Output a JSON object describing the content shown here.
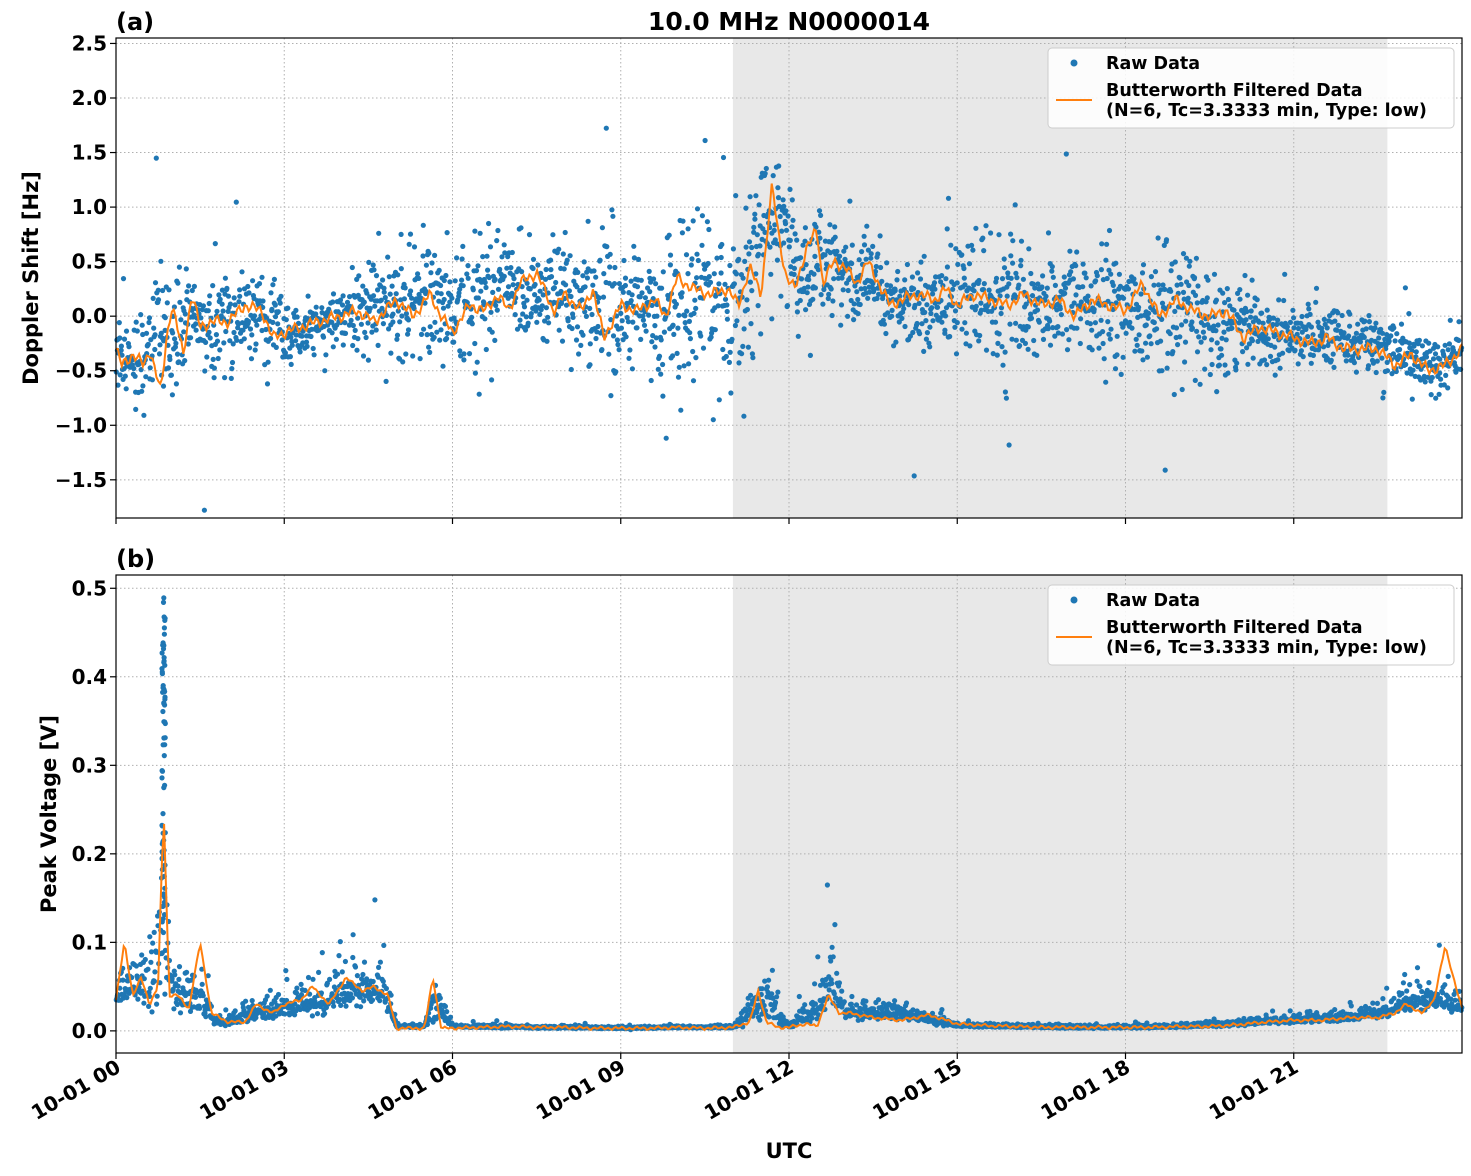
{
  "chart_data": [
    {
      "type": "scatter",
      "panel_label": "(a)",
      "title": "10.0 MHz N0000014",
      "xlabel": "",
      "ylabel": "Doppler Shift [Hz]",
      "xlim": [
        0,
        24
      ],
      "ylim": [
        -1.85,
        2.55
      ],
      "yticks": [
        -1.5,
        -1.0,
        -0.5,
        0.0,
        0.5,
        1.0,
        1.5,
        2.0,
        2.5
      ],
      "ytick_labels": [
        "−1.5",
        "−1.0",
        "−0.5",
        "0.0",
        "0.5",
        "1.0",
        "1.5",
        "2.0",
        "2.5"
      ],
      "grid": true,
      "legend_position": "top-right",
      "shaded_interval_hours": [
        11.0,
        22.67
      ],
      "series": [
        {
          "name": "Raw Data",
          "kind": "scatter",
          "color": "#1f77b4",
          "x": [
            0,
            0.5,
            0.75,
            1.0,
            1.25,
            1.5,
            2.0,
            2.5,
            3.0,
            3.5,
            4.0,
            4.5,
            5.0,
            5.5,
            6.0,
            6.5,
            7.0,
            7.5,
            8.0,
            8.5,
            9.0,
            9.5,
            10.0,
            10.5,
            11.0,
            11.5,
            11.8,
            12.2,
            12.6,
            13.0,
            13.5,
            14.0,
            14.5,
            15.0,
            15.5,
            16.0,
            16.5,
            17.0,
            17.5,
            18.0,
            18.5,
            19.0,
            19.5,
            20.0,
            20.5,
            21.0,
            21.5,
            22.0,
            22.5,
            23.0,
            23.5,
            24.0
          ],
          "center": [
            -0.3,
            -0.4,
            0.0,
            -0.35,
            0.0,
            -0.1,
            -0.05,
            0.05,
            -0.2,
            -0.1,
            0.0,
            0.05,
            0.1,
            0.15,
            0.05,
            0.2,
            0.25,
            0.15,
            0.2,
            0.1,
            0.05,
            0.0,
            0.1,
            0.15,
            0.15,
            0.7,
            0.95,
            0.35,
            0.5,
            0.3,
            0.25,
            0.15,
            0.1,
            0.2,
            0.15,
            0.1,
            0.1,
            0.15,
            0.05,
            0.05,
            0.0,
            0.05,
            0.0,
            -0.1,
            -0.1,
            -0.15,
            -0.2,
            -0.2,
            -0.25,
            -0.4,
            -0.45,
            -0.35
          ],
          "spread": [
            0.45,
            0.5,
            0.55,
            0.5,
            0.45,
            0.35,
            0.5,
            0.4,
            0.35,
            0.2,
            0.25,
            0.55,
            0.55,
            0.6,
            0.55,
            0.6,
            0.6,
            0.5,
            0.55,
            0.8,
            0.75,
            0.6,
            1.0,
            1.0,
            0.8,
            0.8,
            0.7,
            0.55,
            0.55,
            0.5,
            0.45,
            0.45,
            0.5,
            0.6,
            0.55,
            0.55,
            0.55,
            0.6,
            0.55,
            0.55,
            0.6,
            0.6,
            0.55,
            0.45,
            0.35,
            0.3,
            0.3,
            0.3,
            0.3,
            0.3,
            0.3,
            0.35
          ]
        },
        {
          "name": "Butterworth Filtered Data\n(N=6, Tc=3.3333 min, Type: low)",
          "legend_lines": [
            "Butterworth Filtered Data",
            "(N=6, Tc=3.3333 min, Type: low)"
          ],
          "kind": "line",
          "color": "#ff7f0e",
          "x": [
            0,
            0.1,
            0.3,
            0.5,
            0.6,
            0.8,
            0.9,
            1.0,
            1.2,
            1.35,
            1.5,
            1.7,
            2.0,
            2.3,
            2.6,
            2.8,
            3.0,
            3.3,
            3.6,
            4.0,
            4.3,
            4.6,
            5.0,
            5.3,
            5.6,
            5.8,
            6.0,
            6.3,
            6.6,
            6.8,
            7.0,
            7.2,
            7.5,
            7.8,
            8.0,
            8.3,
            8.5,
            8.7,
            9.0,
            9.3,
            9.6,
            9.8,
            10.0,
            10.3,
            10.6,
            10.9,
            11.1,
            11.3,
            11.5,
            11.7,
            11.8,
            11.95,
            12.1,
            12.3,
            12.5,
            12.6,
            12.8,
            13.0,
            13.2,
            13.4,
            13.6,
            13.8,
            14.0,
            14.3,
            14.6,
            14.8,
            15.0,
            15.3,
            15.6,
            15.9,
            16.2,
            16.5,
            16.8,
            17.1,
            17.4,
            17.7,
            18.0,
            18.3,
            18.6,
            18.9,
            19.2,
            19.5,
            19.8,
            20.1,
            20.4,
            20.7,
            21.0,
            21.3,
            21.6,
            21.9,
            22.2,
            22.5,
            22.8,
            23.1,
            23.4,
            23.7,
            24.0
          ],
          "y": [
            -0.3,
            -0.45,
            -0.35,
            -0.45,
            -0.3,
            -0.7,
            -0.2,
            0.1,
            -0.35,
            0.2,
            -0.1,
            -0.05,
            -0.05,
            0.1,
            0.05,
            -0.2,
            -0.15,
            -0.1,
            -0.05,
            0.0,
            0.05,
            -0.05,
            0.15,
            0.0,
            0.2,
            0.0,
            -0.15,
            0.1,
            0.05,
            0.2,
            0.05,
            0.3,
            0.4,
            0.05,
            0.2,
            0.05,
            0.25,
            -0.2,
            0.1,
            0.05,
            0.15,
            0.0,
            0.35,
            0.25,
            0.2,
            0.25,
            0.1,
            0.45,
            0.2,
            1.2,
            0.8,
            0.35,
            0.25,
            0.6,
            0.8,
            0.3,
            0.5,
            0.45,
            0.3,
            0.5,
            0.3,
            0.1,
            0.15,
            0.2,
            0.15,
            0.25,
            0.1,
            0.2,
            0.15,
            0.1,
            0.2,
            0.1,
            0.15,
            0.0,
            0.15,
            0.1,
            0.05,
            0.3,
            0.0,
            0.15,
            0.05,
            0.0,
            0.05,
            -0.2,
            -0.1,
            -0.15,
            -0.2,
            -0.25,
            -0.2,
            -0.3,
            -0.3,
            -0.3,
            -0.45,
            -0.35,
            -0.5,
            -0.45,
            -0.3
          ]
        }
      ]
    },
    {
      "type": "scatter",
      "panel_label": "(b)",
      "title": "",
      "xlabel": "UTC",
      "ylabel": "Peak Voltage [V]",
      "xlim": [
        0,
        24
      ],
      "ylim": [
        -0.025,
        0.515
      ],
      "yticks": [
        0.0,
        0.1,
        0.2,
        0.3,
        0.4,
        0.5
      ],
      "ytick_labels": [
        "0.0",
        "0.1",
        "0.2",
        "0.3",
        "0.4",
        "0.5"
      ],
      "xticks": [
        0,
        3,
        6,
        9,
        12,
        15,
        18,
        21
      ],
      "xtick_labels": [
        "10-01 00",
        "10-01 03",
        "10-01 06",
        "10-01 09",
        "10-01 12",
        "10-01 15",
        "10-01 18",
        "10-01 21"
      ],
      "grid": true,
      "legend_position": "top-right",
      "shaded_interval_hours": [
        11.0,
        22.67
      ],
      "series": [
        {
          "name": "Raw Data",
          "kind": "scatter",
          "color": "#1f77b4",
          "x": [
            0,
            0.3,
            0.6,
            0.85,
            1.0,
            1.5,
            1.8,
            2.0,
            2.5,
            3.0,
            3.5,
            4.0,
            4.5,
            4.8,
            5.0,
            5.5,
            5.7,
            6.0,
            7.0,
            8.0,
            9.0,
            10.0,
            11.0,
            11.5,
            12.0,
            12.5,
            12.8,
            13.0,
            14.0,
            14.5,
            15.0,
            16.0,
            17.0,
            18.0,
            19.0,
            20.0,
            21.0,
            22.0,
            22.5,
            23.0,
            23.5,
            24.0
          ],
          "center": [
            0.04,
            0.05,
            0.04,
            0.12,
            0.04,
            0.03,
            0.01,
            0.01,
            0.02,
            0.025,
            0.03,
            0.04,
            0.045,
            0.04,
            0.005,
            0.005,
            0.03,
            0.005,
            0.004,
            0.004,
            0.003,
            0.004,
            0.004,
            0.03,
            0.005,
            0.02,
            0.05,
            0.02,
            0.02,
            0.012,
            0.006,
            0.005,
            0.004,
            0.004,
            0.005,
            0.008,
            0.012,
            0.015,
            0.02,
            0.03,
            0.035,
            0.025
          ],
          "spread": [
            0.03,
            0.04,
            0.05,
            0.2,
            0.04,
            0.04,
            0.01,
            0.01,
            0.02,
            0.025,
            0.03,
            0.035,
            0.04,
            0.035,
            0.003,
            0.003,
            0.04,
            0.003,
            0.003,
            0.003,
            0.002,
            0.002,
            0.002,
            0.04,
            0.004,
            0.03,
            0.06,
            0.02,
            0.015,
            0.01,
            0.004,
            0.003,
            0.003,
            0.003,
            0.004,
            0.006,
            0.008,
            0.01,
            0.012,
            0.02,
            0.025,
            0.015
          ]
        },
        {
          "name": "Butterworth Filtered Data\n(N=6, Tc=3.3333 min, Type: low)",
          "legend_lines": [
            "Butterworth Filtered Data",
            "(N=6, Tc=3.3333 min, Type: low)"
          ],
          "kind": "line",
          "color": "#ff7f0e",
          "x": [
            0,
            0.15,
            0.3,
            0.45,
            0.6,
            0.75,
            0.85,
            0.95,
            1.1,
            1.3,
            1.5,
            1.7,
            2.0,
            2.3,
            2.5,
            2.8,
            3.0,
            3.3,
            3.5,
            3.8,
            4.1,
            4.4,
            4.6,
            4.85,
            5.0,
            5.5,
            5.65,
            5.8,
            6.0,
            6.5,
            7.0,
            7.5,
            8.0,
            8.5,
            9.0,
            9.5,
            10.0,
            10.5,
            11.0,
            11.3,
            11.45,
            11.6,
            11.8,
            12.0,
            12.3,
            12.5,
            12.7,
            12.9,
            13.1,
            13.5,
            14.0,
            14.5,
            15.0,
            15.5,
            16.0,
            16.5,
            17.0,
            17.5,
            18.0,
            18.5,
            19.0,
            19.5,
            20.0,
            20.5,
            21.0,
            21.5,
            22.0,
            22.5,
            22.8,
            23.0,
            23.3,
            23.5,
            23.7,
            24.0
          ],
          "y": [
            0.035,
            0.1,
            0.04,
            0.06,
            0.03,
            0.05,
            0.25,
            0.04,
            0.04,
            0.025,
            0.1,
            0.02,
            0.01,
            0.01,
            0.03,
            0.02,
            0.03,
            0.035,
            0.05,
            0.03,
            0.06,
            0.045,
            0.05,
            0.04,
            0.003,
            0.003,
            0.06,
            0.003,
            0.003,
            0.004,
            0.005,
            0.004,
            0.004,
            0.003,
            0.003,
            0.003,
            0.004,
            0.003,
            0.004,
            0.01,
            0.045,
            0.01,
            0.004,
            0.004,
            0.008,
            0.005,
            0.04,
            0.02,
            0.02,
            0.015,
            0.012,
            0.018,
            0.008,
            0.006,
            0.005,
            0.004,
            0.004,
            0.004,
            0.004,
            0.004,
            0.005,
            0.005,
            0.007,
            0.01,
            0.012,
            0.012,
            0.015,
            0.015,
            0.02,
            0.03,
            0.02,
            0.035,
            0.095,
            0.025
          ]
        }
      ]
    }
  ]
}
